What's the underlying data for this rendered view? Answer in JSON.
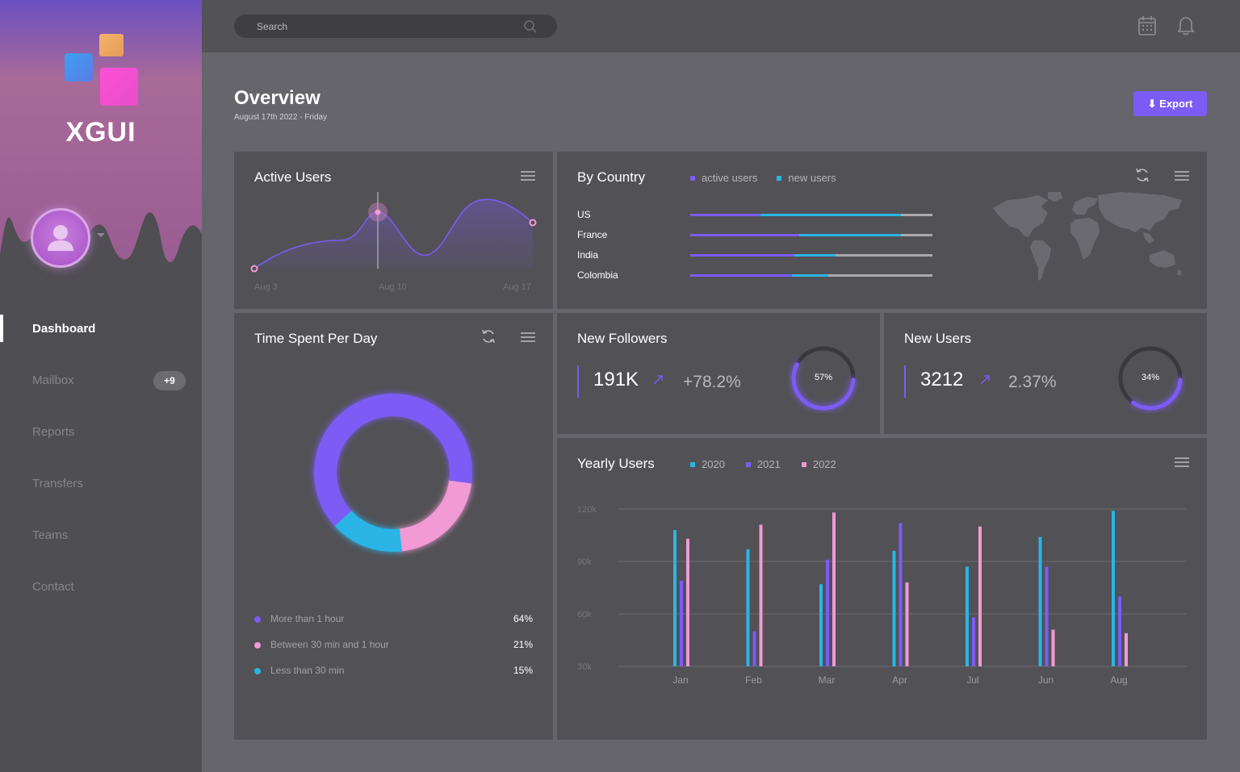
{
  "sidebar": {
    "logo_text": "XGUI",
    "nav": [
      {
        "label": "Dashboard",
        "active": true
      },
      {
        "label": "Mailbox",
        "badge": "+9"
      },
      {
        "label": "Reports"
      },
      {
        "label": "Transfers"
      },
      {
        "label": "Teams"
      },
      {
        "label": "Contact"
      }
    ]
  },
  "topbar": {
    "search_placeholder": "Search",
    "icons": [
      "calendar-icon",
      "bell-icon"
    ]
  },
  "header": {
    "title": "Overview",
    "date": "August 17th 2022 - Friday",
    "export_label": "⬇ Export"
  },
  "colors": {
    "accent": "#7b5cf5",
    "cyan": "#2bb5e6",
    "pink": "#f19ad3",
    "card_bg": "#525156",
    "page_bg": "#66656b"
  },
  "active_users": {
    "title": "Active Users",
    "x_labels": [
      "Aug 3",
      "Aug 10",
      "Aug 17"
    ]
  },
  "by_country": {
    "title": "By Country",
    "legend": [
      {
        "label": "active users",
        "color": "#7b5cf5"
      },
      {
        "label": "new users",
        "color": "#2bb5e6"
      }
    ],
    "rows": [
      {
        "country": "US",
        "active": 0.29,
        "new": 0.87
      },
      {
        "country": "France",
        "active": 0.45,
        "new": 0.87
      },
      {
        "country": "India",
        "active": 0.43,
        "new": 0.6
      },
      {
        "country": "Colombia",
        "active": 0.42,
        "new": 0.57
      }
    ]
  },
  "time_spent": {
    "title": "Time Spent Per Day",
    "segments": [
      {
        "label": "More than 1 hour",
        "value": "64%",
        "pct": 64,
        "color": "#7b5cf5"
      },
      {
        "label": "Between 30 min and 1 hour",
        "value": "21%",
        "pct": 21,
        "color": "#f19ad3"
      },
      {
        "label": "Less than 30 min",
        "value": "15%",
        "pct": 15,
        "color": "#2bb5e6"
      }
    ]
  },
  "new_followers": {
    "title": "New Followers",
    "value": "191K",
    "change": "+78.2%",
    "ring_label": "57%",
    "ring_pct": 57
  },
  "new_users": {
    "title": "New Users",
    "value": "3212",
    "change": "2.37%",
    "ring_label": "34%",
    "ring_pct": 34
  },
  "yearly_users": {
    "title": "Yearly Users"
  },
  "chart_data": {
    "type": "bar",
    "title": "Yearly Users",
    "categories": [
      "Jan",
      "Feb",
      "Mar",
      "Apr",
      "Jul",
      "Jun",
      "Aug"
    ],
    "y_ticks": [
      "120k",
      "90k",
      "60k",
      "30k"
    ],
    "ylim": [
      30000,
      120000
    ],
    "grid": true,
    "legend_position": "top",
    "series": [
      {
        "name": "2020",
        "color": "#2bb5e6",
        "values": [
          108000,
          97000,
          77000,
          96000,
          87000,
          104000,
          119000
        ]
      },
      {
        "name": "2021",
        "color": "#7b5cf5",
        "values": [
          79000,
          50000,
          91000,
          112000,
          58000,
          87000,
          70000
        ]
      },
      {
        "name": "2022",
        "color": "#f19ad3",
        "values": [
          103000,
          111000,
          118000,
          78000,
          110000,
          51000,
          49000
        ]
      }
    ]
  }
}
